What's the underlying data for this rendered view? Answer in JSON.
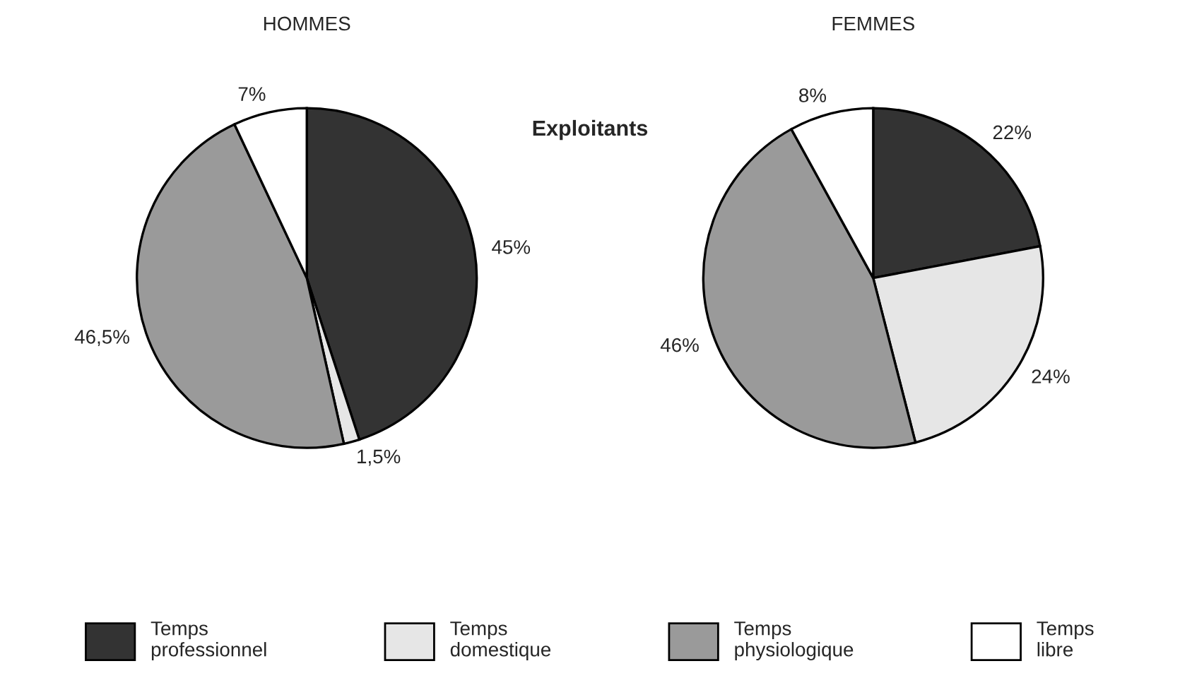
{
  "chart_data": [
    {
      "type": "pie",
      "title": "HOMMES",
      "categories": [
        "Temps\nprofessionnel",
        "Temps\ndomestique",
        "Temps\nphysiologique",
        "Temps\nlibre"
      ],
      "values": [
        45,
        1.5,
        46.5,
        7
      ],
      "value_labels": [
        "45%",
        "1,5%",
        "46,5%",
        "7%"
      ],
      "colors": [
        "#333333",
        "#e6e6e6",
        "#9a9a9a",
        "#ffffff"
      ],
      "annotations": [
        "Exploitants"
      ],
      "legend": "bottom"
    },
    {
      "type": "pie",
      "title": "FEMMES",
      "values": [
        22,
        24,
        46,
        8
      ],
      "value_labels": [
        "22%",
        "24%",
        "46%",
        "8%"
      ],
      "colors": [
        "#333333",
        "#e6e6e6",
        "#9a9a9a",
        "#ffffff"
      ]
    }
  ]
}
